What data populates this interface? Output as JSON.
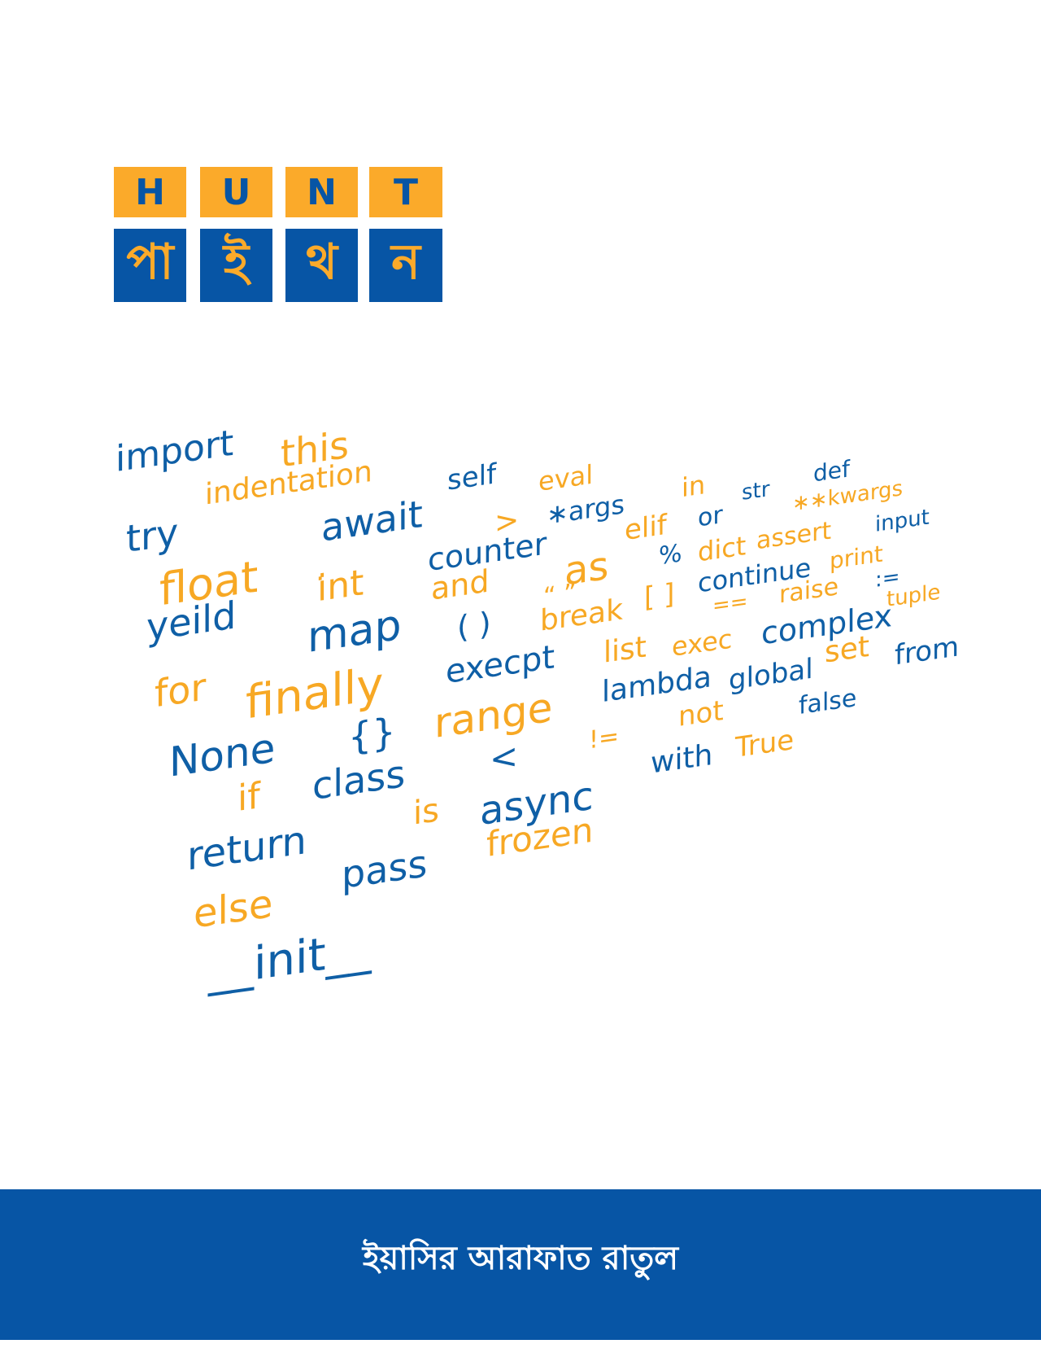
{
  "colors": {
    "blue": "#0f5fa6",
    "orange": "#f7a824",
    "tile_orange": "#fbaa2a",
    "tile_blue": "#0755a5",
    "footer": "#0755a5"
  },
  "logo": {
    "latin_letters": [
      "H",
      "U",
      "N",
      "T"
    ],
    "bengali_letters": [
      "পা",
      "ই",
      "থ",
      "ন"
    ]
  },
  "word_cloud": [
    {
      "text": "import",
      "color": "blue",
      "size": 44
    },
    {
      "text": "this",
      "color": "orange",
      "size": 46
    },
    {
      "text": "indentation",
      "color": "orange",
      "size": 36
    },
    {
      "text": "try",
      "color": "blue",
      "size": 46
    },
    {
      "text": "await",
      "color": "blue",
      "size": 46
    },
    {
      "text": "self",
      "color": "blue",
      "size": 34
    },
    {
      "text": "eval",
      "color": "orange",
      "size": 32
    },
    {
      "text": "float",
      "color": "orange",
      "size": 54
    },
    {
      "text": ">",
      "color": "orange",
      "size": 36
    },
    {
      "text": "∗args",
      "color": "blue",
      "size": 32
    },
    {
      "text": "in",
      "color": "orange",
      "size": 32
    },
    {
      "text": "str",
      "color": "blue",
      "size": 26
    },
    {
      "text": "def",
      "color": "blue",
      "size": 28
    },
    {
      "text": ".",
      "color": "orange",
      "size": 36
    },
    {
      "text": "int",
      "color": "orange",
      "size": 44
    },
    {
      "text": "counter",
      "color": "blue",
      "size": 38
    },
    {
      "text": "elif",
      "color": "orange",
      "size": 34
    },
    {
      "text": "or",
      "color": "blue",
      "size": 30
    },
    {
      "text": "∗∗kwargs",
      "color": "orange",
      "size": 26
    },
    {
      "text": "yeild",
      "color": "blue",
      "size": 46
    },
    {
      "text": "and",
      "color": "orange",
      "size": 38
    },
    {
      "text": "as",
      "color": "orange",
      "size": 48
    },
    {
      "text": "%",
      "color": "blue",
      "size": 30
    },
    {
      "text": "dict",
      "color": "orange",
      "size": 32
    },
    {
      "text": "assert",
      "color": "orange",
      "size": 30
    },
    {
      "text": "input",
      "color": "blue",
      "size": 26
    },
    {
      "text": "map",
      "color": "blue",
      "size": 52
    },
    {
      "text": "( )",
      "color": "blue",
      "size": 38
    },
    {
      "text": "“ ”",
      "color": "orange",
      "size": 30
    },
    {
      "text": "break",
      "color": "orange",
      "size": 36
    },
    {
      "text": "[ ]",
      "color": "orange",
      "size": 34
    },
    {
      "text": "continue",
      "color": "blue",
      "size": 32
    },
    {
      "text": "print",
      "color": "orange",
      "size": 28
    },
    {
      "text": "for",
      "color": "orange",
      "size": 46
    },
    {
      "text": "==",
      "color": "orange",
      "size": 26
    },
    {
      "text": "raise",
      "color": "orange",
      "size": 30
    },
    {
      "text": ":=",
      "color": "blue",
      "size": 26
    },
    {
      "text": "finally",
      "color": "orange",
      "size": 56
    },
    {
      "text": "execpt",
      "color": "blue",
      "size": 40
    },
    {
      "text": "list",
      "color": "orange",
      "size": 36
    },
    {
      "text": "exec",
      "color": "orange",
      "size": 32
    },
    {
      "text": "complex",
      "color": "blue",
      "size": 38
    },
    {
      "text": "tuple",
      "color": "orange",
      "size": 26
    },
    {
      "text": "None",
      "color": "blue",
      "size": 50
    },
    {
      "text": "{}",
      "color": "blue",
      "size": 46
    },
    {
      "text": "range",
      "color": "orange",
      "size": 50
    },
    {
      "text": "lambda",
      "color": "blue",
      "size": 36
    },
    {
      "text": "global",
      "color": "blue",
      "size": 34
    },
    {
      "text": "set",
      "color": "orange",
      "size": 36
    },
    {
      "text": "from",
      "color": "blue",
      "size": 34
    },
    {
      "text": "if",
      "color": "orange",
      "size": 44
    },
    {
      "text": "class",
      "color": "blue",
      "size": 46
    },
    {
      "text": "<",
      "color": "blue",
      "size": 42
    },
    {
      "text": "!=",
      "color": "orange",
      "size": 30
    },
    {
      "text": "not",
      "color": "orange",
      "size": 34
    },
    {
      "text": "false",
      "color": "blue",
      "size": 30
    },
    {
      "text": "return",
      "color": "blue",
      "size": 48
    },
    {
      "text": "is",
      "color": "orange",
      "size": 40
    },
    {
      "text": "async",
      "color": "blue",
      "size": 48
    },
    {
      "text": "with",
      "color": "blue",
      "size": 36
    },
    {
      "text": "True",
      "color": "orange",
      "size": 34
    },
    {
      "text": "else",
      "color": "orange",
      "size": 48
    },
    {
      "text": "pass",
      "color": "blue",
      "size": 46
    },
    {
      "text": "frozen",
      "color": "orange",
      "size": 42
    },
    {
      "text": "__init__",
      "color": "blue",
      "size": 56
    }
  ],
  "author": "ইয়াসির আরাফাত রাতুল"
}
